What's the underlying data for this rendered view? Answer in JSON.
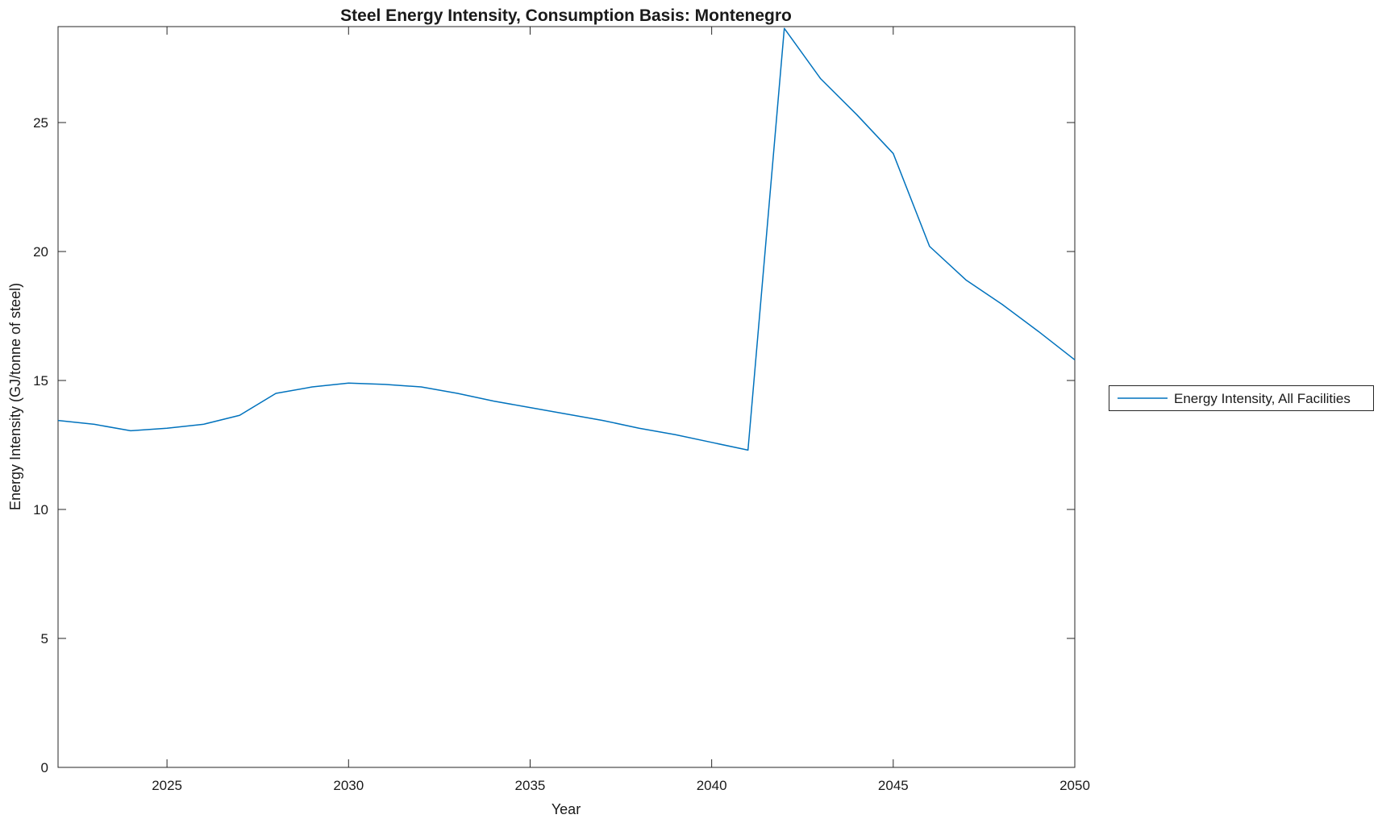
{
  "figure": {
    "background": "#ffffff",
    "axis_color": "#262626",
    "text_color": "#1a1a1a"
  },
  "chart_data": {
    "type": "line",
    "title": "Steel Energy Intensity, Consumption Basis: Montenegro",
    "xlabel": "Year",
    "ylabel": "Energy Intensity (GJ/tonne of steel)",
    "xlim": [
      2022,
      2050
    ],
    "ylim": [
      0,
      28.72
    ],
    "x_ticks": [
      2025,
      2030,
      2035,
      2040,
      2045,
      2050
    ],
    "y_ticks": [
      0,
      5,
      10,
      15,
      20,
      25
    ],
    "grid": false,
    "legend": {
      "position": "outside-right",
      "entries": [
        "Energy Intensity, All Facilities"
      ]
    },
    "series": [
      {
        "name": "Energy Intensity, All Facilities",
        "color": "#0072BD",
        "x": [
          2022,
          2023,
          2024,
          2025,
          2026,
          2027,
          2028,
          2029,
          2030,
          2031,
          2032,
          2033,
          2034,
          2035,
          2036,
          2037,
          2038,
          2039,
          2040,
          2041,
          2042,
          2043,
          2044,
          2045,
          2046,
          2047,
          2048,
          2049,
          2050
        ],
        "y": [
          13.45,
          13.3,
          13.05,
          13.15,
          13.3,
          13.65,
          14.5,
          14.75,
          14.9,
          14.85,
          14.75,
          14.5,
          14.2,
          13.95,
          13.7,
          13.45,
          13.15,
          12.9,
          12.6,
          12.3,
          28.65,
          26.7,
          25.3,
          23.8,
          20.2,
          18.9,
          17.95,
          16.9,
          15.8
        ]
      }
    ]
  }
}
